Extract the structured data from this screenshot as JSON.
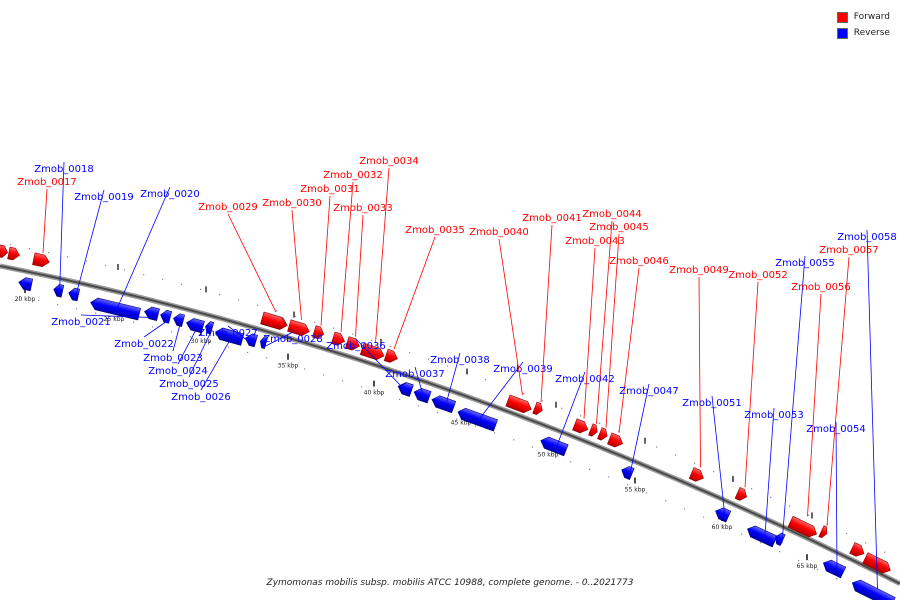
{
  "legend": {
    "forward": {
      "label": "Forward",
      "color": "#ff0000"
    },
    "reverse": {
      "label": "Reverse",
      "color": "#0000ff"
    }
  },
  "caption": "Zymomonas mobilis subsp. mobilis ATCC 10988, complete genome. - 0..2021773",
  "ruler": {
    "ticks": [
      "20 kbp",
      "25 kbp",
      "30 kbp",
      "35 kbp",
      "40 kbp",
      "45 kbp",
      "50 kbp",
      "55 kbp",
      "60 kbp",
      "65 kbp"
    ]
  },
  "genes": [
    {
      "id": "Zmob_0017",
      "strand": "forward"
    },
    {
      "id": "Zmob_0018",
      "strand": "reverse"
    },
    {
      "id": "Zmob_0019",
      "strand": "reverse"
    },
    {
      "id": "Zmob_0020",
      "strand": "reverse"
    },
    {
      "id": "Zmob_0021",
      "strand": "reverse"
    },
    {
      "id": "Zmob_0022",
      "strand": "reverse"
    },
    {
      "id": "Zmob_0023",
      "strand": "reverse"
    },
    {
      "id": "Zmob_0024",
      "strand": "reverse"
    },
    {
      "id": "Zmob_0025",
      "strand": "reverse"
    },
    {
      "id": "Zmob_0026",
      "strand": "reverse"
    },
    {
      "id": "Zmob_0027",
      "strand": "reverse"
    },
    {
      "id": "Zmob_0028",
      "strand": "reverse"
    },
    {
      "id": "Zmob_0029",
      "strand": "forward"
    },
    {
      "id": "Zmob_0030",
      "strand": "forward"
    },
    {
      "id": "Zmob_0031",
      "strand": "forward"
    },
    {
      "id": "Zmob_0032",
      "strand": "forward"
    },
    {
      "id": "Zmob_0033",
      "strand": "forward"
    },
    {
      "id": "Zmob_0034",
      "strand": "forward"
    },
    {
      "id": "Zmob_0035",
      "strand": "forward"
    },
    {
      "id": "Zmob_0036",
      "strand": "reverse"
    },
    {
      "id": "Zmob_0037",
      "strand": "reverse"
    },
    {
      "id": "Zmob_0038",
      "strand": "reverse"
    },
    {
      "id": "Zmob_0039",
      "strand": "reverse"
    },
    {
      "id": "Zmob_0040",
      "strand": "forward"
    },
    {
      "id": "Zmob_0041",
      "strand": "forward"
    },
    {
      "id": "Zmob_0042",
      "strand": "reverse"
    },
    {
      "id": "Zmob_0043",
      "strand": "forward"
    },
    {
      "id": "Zmob_0044",
      "strand": "forward"
    },
    {
      "id": "Zmob_0045",
      "strand": "forward"
    },
    {
      "id": "Zmob_0046",
      "strand": "forward"
    },
    {
      "id": "Zmob_0047",
      "strand": "reverse"
    },
    {
      "id": "Zmob_0049",
      "strand": "forward"
    },
    {
      "id": "Zmob_0051",
      "strand": "reverse"
    },
    {
      "id": "Zmob_0052",
      "strand": "forward"
    },
    {
      "id": "Zmob_0053",
      "strand": "reverse"
    },
    {
      "id": "Zmob_0054",
      "strand": "reverse"
    },
    {
      "id": "Zmob_0055",
      "strand": "reverse"
    },
    {
      "id": "Zmob_0056",
      "strand": "forward"
    },
    {
      "id": "Zmob_0057",
      "strand": "forward"
    },
    {
      "id": "Zmob_0058",
      "strand": "reverse"
    }
  ]
}
